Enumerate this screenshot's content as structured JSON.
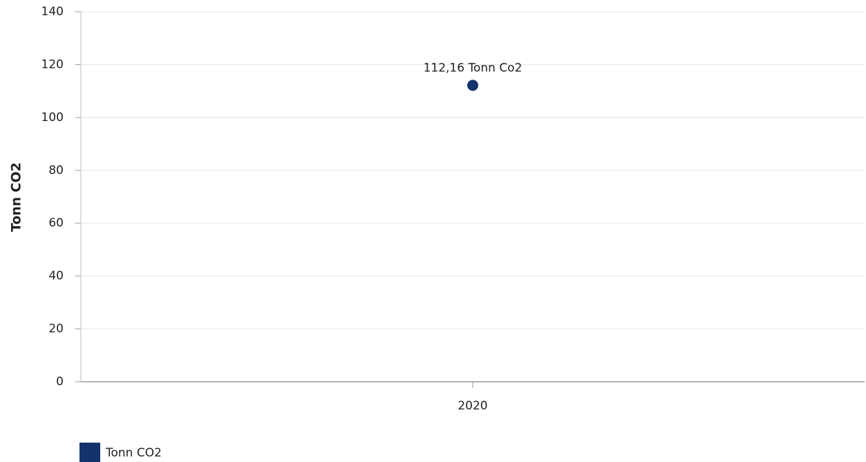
{
  "chart_data": {
    "type": "line",
    "y_label": "Tonn CO2",
    "categories": [
      "2020"
    ],
    "series": [
      {
        "name": "Tonn CO2",
        "color": "#12336b",
        "values": [
          112.16
        ],
        "value_labels": [
          "112,16 Tonn Co2"
        ]
      }
    ],
    "ylim": [
      0,
      140
    ],
    "yticks": [
      0,
      20,
      40,
      60,
      80,
      100,
      120,
      140
    ],
    "grid": true,
    "legend": "bottom-left"
  }
}
